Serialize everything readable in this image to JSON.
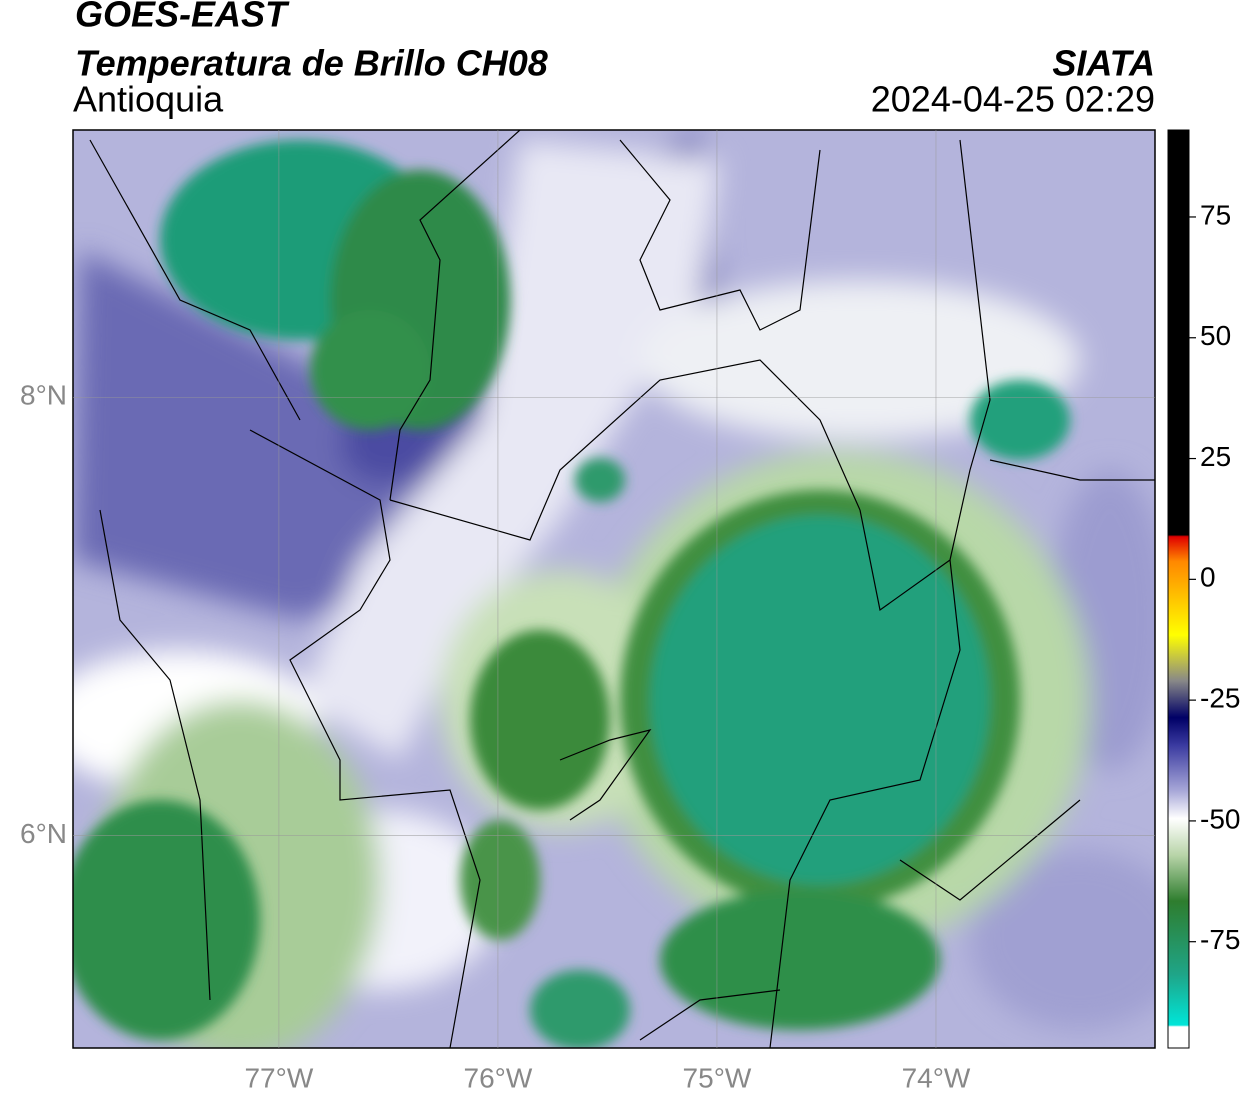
{
  "header": {
    "title": "GOES-EAST",
    "subtitle": "Temperatura de Brillo CH08",
    "region": "Antioquia",
    "source": "SIATA",
    "timestamp": "2024-04-25 02:29"
  },
  "map": {
    "xlim": [
      -77.94,
      -73.0
    ],
    "ylim": [
      5.03,
      9.22
    ],
    "xticks": [
      {
        "value": -77,
        "label": "77°W"
      },
      {
        "value": -76,
        "label": "76°W"
      },
      {
        "value": -75,
        "label": "75°W"
      },
      {
        "value": -74,
        "label": "74°W"
      }
    ],
    "yticks": [
      {
        "value": 8,
        "label": "8°N"
      },
      {
        "value": 6,
        "label": "6°N"
      }
    ],
    "grid": true
  },
  "colorbar": {
    "lim": [
      -97,
      93
    ],
    "ticks": [
      75,
      50,
      25,
      0,
      -25,
      -50,
      -75
    ]
  }
}
